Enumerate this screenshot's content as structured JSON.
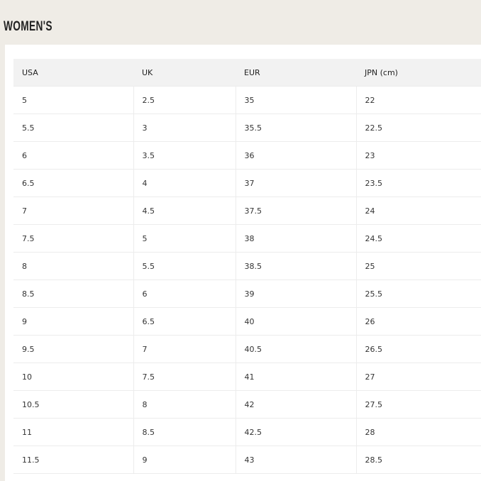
{
  "title": "WOMEN'S",
  "table": {
    "headers": [
      "USA",
      "UK",
      "EUR",
      "JPN (cm)"
    ],
    "rows": [
      [
        "5",
        "2.5",
        "35",
        "22"
      ],
      [
        "5.5",
        "3",
        "35.5",
        "22.5"
      ],
      [
        "6",
        "3.5",
        "36",
        "23"
      ],
      [
        "6.5",
        "4",
        "37",
        "23.5"
      ],
      [
        "7",
        "4.5",
        "37.5",
        "24"
      ],
      [
        "7.5",
        "5",
        "38",
        "24.5"
      ],
      [
        "8",
        "5.5",
        "38.5",
        "25"
      ],
      [
        "8.5",
        "6",
        "39",
        "25.5"
      ],
      [
        "9",
        "6.5",
        "40",
        "26"
      ],
      [
        "9.5",
        "7",
        "40.5",
        "26.5"
      ],
      [
        "10",
        "7.5",
        "41",
        "27"
      ],
      [
        "10.5",
        "8",
        "42",
        "27.5"
      ],
      [
        "11",
        "8.5",
        "42.5",
        "28"
      ],
      [
        "11.5",
        "9",
        "43",
        "28.5"
      ]
    ]
  }
}
